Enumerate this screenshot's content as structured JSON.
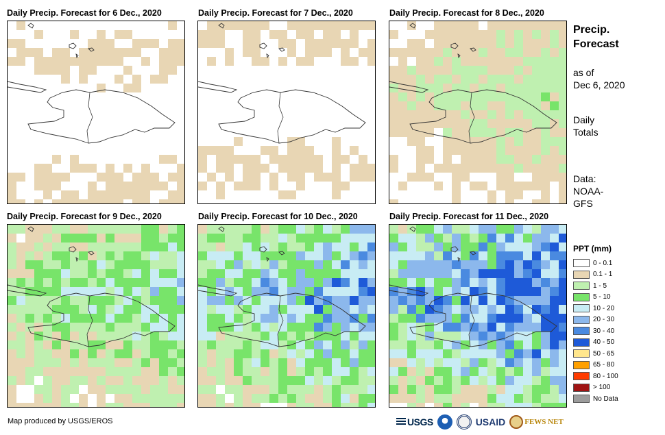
{
  "panels": [
    {
      "title": "Daily Precip. Forecast for 6 Dec., 2020",
      "pattern": "light"
    },
    {
      "title": "Daily Precip. Forecast for 7 Dec., 2020",
      "pattern": "light"
    },
    {
      "title": "Daily Precip. Forecast for 8 Dec., 2020",
      "pattern": "moderate"
    },
    {
      "title": "Daily Precip. Forecast for 9 Dec., 2020",
      "pattern": "wet"
    },
    {
      "title": "Daily Precip. Forecast for 10 Dec., 2020",
      "pattern": "wetter"
    },
    {
      "title": "Daily Precip. Forecast for 11 Dec., 2020",
      "pattern": "wettest"
    }
  ],
  "sidebar": {
    "title_line1": "Precip.",
    "title_line2": "Forecast",
    "asof_line1": "as of",
    "asof_line2": "Dec 6, 2020",
    "daily_line1": "Daily",
    "daily_line2": "Totals",
    "data_line1": "Data:",
    "data_line2": "NOAA-",
    "data_line3": "GFS"
  },
  "legend": {
    "title": "PPT (mm)",
    "items": [
      {
        "label": "0 - 0.1",
        "color": "#ffffff"
      },
      {
        "label": "0.1 - 1",
        "color": "#e8d6b4"
      },
      {
        "label": "1 - 5",
        "color": "#bff0b0"
      },
      {
        "label": "5 - 10",
        "color": "#78e46a"
      },
      {
        "label": "10 - 20",
        "color": "#c8ecf4"
      },
      {
        "label": "20 - 30",
        "color": "#8cb8ec"
      },
      {
        "label": "30 - 40",
        "color": "#4a8ae0"
      },
      {
        "label": "40 - 50",
        "color": "#1e5ad8"
      },
      {
        "label": "50 - 65",
        "color": "#ffe68c"
      },
      {
        "label": "65 - 80",
        "color": "#ffa000"
      },
      {
        "label": "80 - 100",
        "color": "#ff3c00"
      },
      {
        "label": "> 100",
        "color": "#a01414"
      },
      {
        "label": "No Data",
        "color": "#9c9c9c"
      }
    ]
  },
  "credit": "Map produced by USGS/EROS",
  "logos": {
    "usgs": "USGS",
    "usaid": "USAID",
    "fews": "FEWS NET"
  }
}
